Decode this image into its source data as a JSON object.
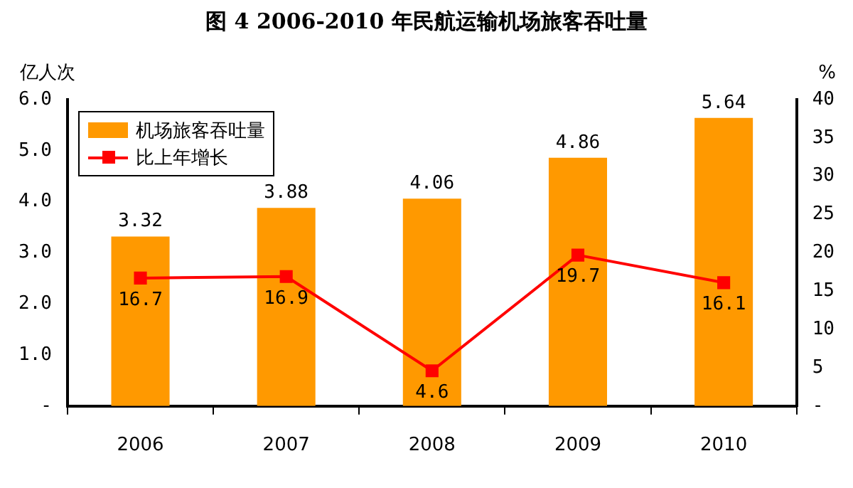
{
  "chart_data": {
    "type": "bar",
    "title": "图 4 2006-2010 年民航运输机场旅客吞吐量",
    "ylabel": "亿人次",
    "y2label": "%",
    "categories": [
      "2006",
      "2007",
      "2008",
      "2009",
      "2010"
    ],
    "series": [
      {
        "name": "机场旅客吞吐量",
        "color": "#ff9900",
        "values": [
          3.32,
          3.88,
          4.06,
          4.86,
          5.64
        ]
      },
      {
        "name": "比上年增长",
        "type": "line",
        "axis": "y2",
        "color": "#ff0000",
        "marker": "square",
        "values": [
          16.7,
          16.9,
          4.6,
          19.7,
          16.1
        ]
      }
    ],
    "ylim": [
      0,
      6
    ],
    "yticks": [
      {
        "value": 0,
        "label": "-"
      },
      {
        "value": 1,
        "label": "1.0"
      },
      {
        "value": 2,
        "label": "2.0"
      },
      {
        "value": 3,
        "label": "3.0"
      },
      {
        "value": 4,
        "label": "4.0"
      },
      {
        "value": 5,
        "label": "5.0"
      },
      {
        "value": 6,
        "label": "6.0"
      }
    ],
    "y2lim": [
      0,
      40
    ],
    "y2ticks": [
      {
        "value": 0,
        "label": "-"
      },
      5,
      10,
      15,
      20,
      25,
      30,
      35,
      40
    ],
    "grid": false,
    "legend": "top left",
    "data_labels": true
  }
}
